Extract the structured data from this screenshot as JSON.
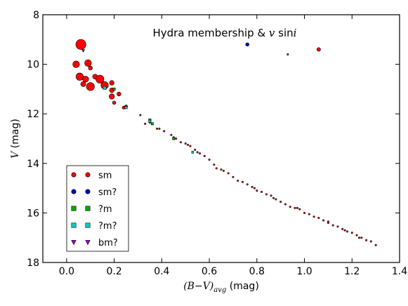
{
  "chart_data": {
    "type": "scatter",
    "title": "Hydra membership & v sini",
    "title_parts": {
      "before": "Hydra membership & ",
      "v": "v",
      "sin": " sin",
      "i": "i"
    },
    "xlabel": "(B−V)avg (mag)",
    "xlabel_parts": {
      "expr": "(B−V)",
      "sub": "avg",
      "unit": " (mag)"
    },
    "ylabel": "V (mag)",
    "ylabel_parts": {
      "var": "V",
      "unit": " (mag)"
    },
    "xlim": [
      -0.1,
      1.4
    ],
    "ylim": [
      8,
      18
    ],
    "y_inverted": true,
    "xticks": [
      0.0,
      0.2,
      0.4,
      0.6,
      0.8,
      1.0,
      1.2,
      1.4
    ],
    "xtick_labels": [
      "0.0",
      "0.2",
      "0.4",
      "0.6",
      "0.8",
      "1.0",
      "1.2",
      "1.4"
    ],
    "yticks": [
      8,
      10,
      12,
      14,
      16,
      18
    ],
    "ytick_labels": [
      "8",
      "10",
      "12",
      "14",
      "16",
      "18"
    ],
    "grid": false,
    "legend_position": "lower-left",
    "series": [
      {
        "name": "sm",
        "marker": "circle",
        "color": "#ff0000",
        "points": [
          [
            0.06,
            9.2,
            3.0
          ],
          [
            0.04,
            10.0,
            2.0
          ],
          [
            0.09,
            9.95,
            2.0
          ],
          [
            0.055,
            10.5,
            2.2
          ],
          [
            0.08,
            10.6,
            1.8
          ],
          [
            0.1,
            10.15,
            1.2
          ],
          [
            0.12,
            10.5,
            1.5
          ],
          [
            0.14,
            10.6,
            2.4
          ],
          [
            0.1,
            10.9,
            2.4
          ],
          [
            0.07,
            10.8,
            1.5
          ],
          [
            0.16,
            10.85,
            2.2
          ],
          [
            0.19,
            10.75,
            1.4
          ],
          [
            0.19,
            11.05,
            1.4
          ],
          [
            0.22,
            11.2,
            1.2
          ],
          [
            0.19,
            11.3,
            1.6
          ],
          [
            0.2,
            11.55,
            1.0
          ],
          [
            0.24,
            11.75,
            0.9
          ],
          [
            0.25,
            11.7,
            0.9
          ],
          [
            1.06,
            9.4,
            1.1
          ],
          [
            0.93,
            9.6,
            0.5
          ],
          [
            0.31,
            12.05,
            0.5
          ],
          [
            0.33,
            12.4,
            0.5
          ],
          [
            0.35,
            12.35,
            0.5
          ],
          [
            0.38,
            12.6,
            0.5
          ],
          [
            0.44,
            12.85,
            0.5
          ],
          [
            0.46,
            13.0,
            0.5
          ],
          [
            0.48,
            13.15,
            0.5
          ],
          [
            0.5,
            13.2,
            0.5
          ],
          [
            0.51,
            13.25,
            0.5
          ],
          [
            0.52,
            13.3,
            0.5
          ],
          [
            0.54,
            13.45,
            0.5
          ],
          [
            0.55,
            13.55,
            0.5
          ],
          [
            0.58,
            13.7,
            0.5
          ],
          [
            0.6,
            13.85,
            0.5
          ],
          [
            0.62,
            14.05,
            0.5
          ],
          [
            0.63,
            14.2,
            0.5
          ],
          [
            0.65,
            14.25,
            0.5
          ],
          [
            0.66,
            14.3,
            0.5
          ],
          [
            0.7,
            14.55,
            0.5
          ],
          [
            0.72,
            14.7,
            0.5
          ],
          [
            0.74,
            14.75,
            0.5
          ],
          [
            0.76,
            14.85,
            0.5
          ],
          [
            0.78,
            14.95,
            0.5
          ],
          [
            0.8,
            15.1,
            0.5
          ],
          [
            0.82,
            15.15,
            0.5
          ],
          [
            0.84,
            15.25,
            0.5
          ],
          [
            0.86,
            15.3,
            0.5
          ],
          [
            0.88,
            15.45,
            0.5
          ],
          [
            0.9,
            15.55,
            0.5
          ],
          [
            0.92,
            15.65,
            0.5
          ],
          [
            0.94,
            15.75,
            0.5
          ],
          [
            0.96,
            15.8,
            0.5
          ],
          [
            0.98,
            15.85,
            0.5
          ],
          [
            1.0,
            16.0,
            0.5
          ],
          [
            1.02,
            16.05,
            0.5
          ],
          [
            1.04,
            16.15,
            0.5
          ],
          [
            1.06,
            16.2,
            0.5
          ],
          [
            1.08,
            16.3,
            0.5
          ],
          [
            1.1,
            16.4,
            0.5
          ],
          [
            1.12,
            16.5,
            0.5
          ],
          [
            1.14,
            16.55,
            0.5
          ],
          [
            1.16,
            16.65,
            0.5
          ],
          [
            1.18,
            16.75,
            0.5
          ],
          [
            1.2,
            16.8,
            0.5
          ],
          [
            1.22,
            16.9,
            0.5
          ],
          [
            1.24,
            17.0,
            0.5
          ],
          [
            1.26,
            17.1,
            0.5
          ],
          [
            1.28,
            17.15,
            0.5
          ],
          [
            1.3,
            17.3,
            0.5
          ],
          [
            0.68,
            14.4,
            0.5
          ],
          [
            0.56,
            13.6,
            0.5
          ],
          [
            0.45,
            12.95,
            0.5
          ],
          [
            0.41,
            12.7,
            0.5
          ],
          [
            0.39,
            12.6,
            0.5
          ],
          [
            0.87,
            15.4,
            0.5
          ],
          [
            0.97,
            15.8,
            0.5
          ],
          [
            1.1,
            16.35,
            0.5
          ],
          [
            1.23,
            17.0,
            0.5
          ],
          [
            1.17,
            16.7,
            0.5
          ],
          [
            0.79,
            15.0,
            0.5
          ]
        ]
      },
      {
        "name": "sm?",
        "marker": "circle",
        "color": "#0000cc",
        "points": [
          [
            0.76,
            9.2,
            1.0
          ]
        ]
      },
      {
        "name": "?m",
        "marker": "square",
        "color": "#00aa00",
        "points": [
          [
            0.2,
            11.0,
            0.7
          ],
          [
            0.35,
            12.25,
            0.7
          ],
          [
            0.45,
            13.0,
            0.7
          ],
          [
            0.36,
            12.4,
            0.7
          ]
        ]
      },
      {
        "name": "?m?",
        "marker": "square",
        "color": "#00cccc",
        "points": [
          [
            0.16,
            10.95,
            0.9
          ],
          [
            0.25,
            11.75,
            0.7
          ],
          [
            0.35,
            12.3,
            0.7
          ],
          [
            0.53,
            13.55,
            0.6
          ]
        ]
      },
      {
        "name": "bm?",
        "marker": "triangle-down",
        "color": "#9900cc",
        "points": [
          [
            0.07,
            9.45,
            0.8
          ]
        ]
      }
    ]
  }
}
